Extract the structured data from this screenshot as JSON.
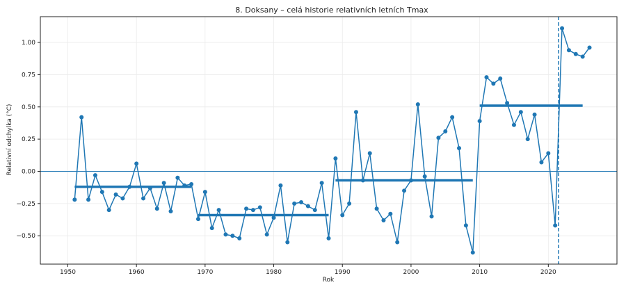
{
  "chart_data": {
    "type": "line",
    "title": "8. Doksany – celá historie relativních letních Tmax",
    "xlabel": "Rok",
    "ylabel": "Relativní odchylka (°C)",
    "xlim": [
      1946,
      2030
    ],
    "ylim": [
      -0.72,
      1.2
    ],
    "xticks": [
      1950,
      1960,
      1970,
      1980,
      1990,
      2000,
      2010,
      2020
    ],
    "xtick_labels": [
      "1950",
      "1960",
      "1970",
      "1980",
      "1990",
      "2000",
      "2010",
      "2020"
    ],
    "yticks": [
      -0.5,
      -0.25,
      0.0,
      0.25,
      0.5,
      0.75,
      1.0
    ],
    "ytick_labels": [
      "−0.50",
      "−0.25",
      "0.00",
      "0.25",
      "0.50",
      "0.75",
      "1.00"
    ],
    "grid": true,
    "zero_line": true,
    "colors": {
      "series": "#1f77b4",
      "grid": "#ebebeb",
      "frame": "#222222"
    },
    "series": [
      {
        "x": [
          1951,
          1952,
          1953,
          1954,
          1955,
          1956,
          1957,
          1958,
          1959,
          1960,
          1961,
          1962,
          1963,
          1964,
          1965,
          1966,
          1967,
          1968,
          1969,
          1970,
          1971,
          1972,
          1973,
          1974,
          1975,
          1976,
          1977,
          1978,
          1979,
          1980,
          1981,
          1982,
          1983,
          1984,
          1985,
          1986,
          1987,
          1988,
          1989,
          1990,
          1991,
          1992,
          1993,
          1994,
          1995,
          1996,
          1997,
          1998,
          1999,
          2000,
          2001,
          2002,
          2003,
          2004,
          2005,
          2006,
          2007,
          2008,
          2009,
          2010,
          2011,
          2012,
          2013,
          2014,
          2015,
          2016,
          2017,
          2018,
          2019,
          2020,
          2021,
          2022,
          2023,
          2024,
          2025,
          2026
        ],
        "values": [
          -0.22,
          0.42,
          -0.22,
          -0.03,
          -0.16,
          -0.3,
          -0.18,
          -0.21,
          -0.12,
          0.06,
          -0.21,
          -0.13,
          -0.29,
          -0.09,
          -0.31,
          -0.05,
          -0.11,
          -0.1,
          -0.37,
          -0.16,
          -0.44,
          -0.3,
          -0.49,
          -0.5,
          -0.52,
          -0.29,
          -0.3,
          -0.28,
          -0.49,
          -0.36,
          -0.11,
          -0.55,
          -0.25,
          -0.24,
          -0.27,
          -0.3,
          -0.09,
          -0.52,
          0.1,
          -0.34,
          -0.25,
          0.46,
          -0.07,
          0.14,
          -0.29,
          -0.38,
          -0.33,
          -0.55,
          -0.15,
          -0.07,
          0.52,
          -0.04,
          -0.35,
          0.26,
          0.31,
          0.42,
          0.18,
          -0.42,
          -0.63,
          0.39,
          0.73,
          0.68,
          0.72,
          0.53,
          0.36,
          0.46,
          0.25,
          0.44,
          0.07,
          0.14,
          -0.42,
          1.11,
          0.94,
          0.91,
          0.89,
          0.96
        ]
      }
    ],
    "period_means": [
      {
        "x_start": 1951,
        "x_end": 1968,
        "value": -0.12
      },
      {
        "x_start": 1969,
        "x_end": 1988,
        "value": -0.34
      },
      {
        "x_start": 1989,
        "x_end": 2009,
        "value": -0.07
      },
      {
        "x_start": 2010,
        "x_end": 2025,
        "value": 0.51
      }
    ],
    "vertical_marker": {
      "x": 2021.5,
      "style": "dashed"
    }
  }
}
